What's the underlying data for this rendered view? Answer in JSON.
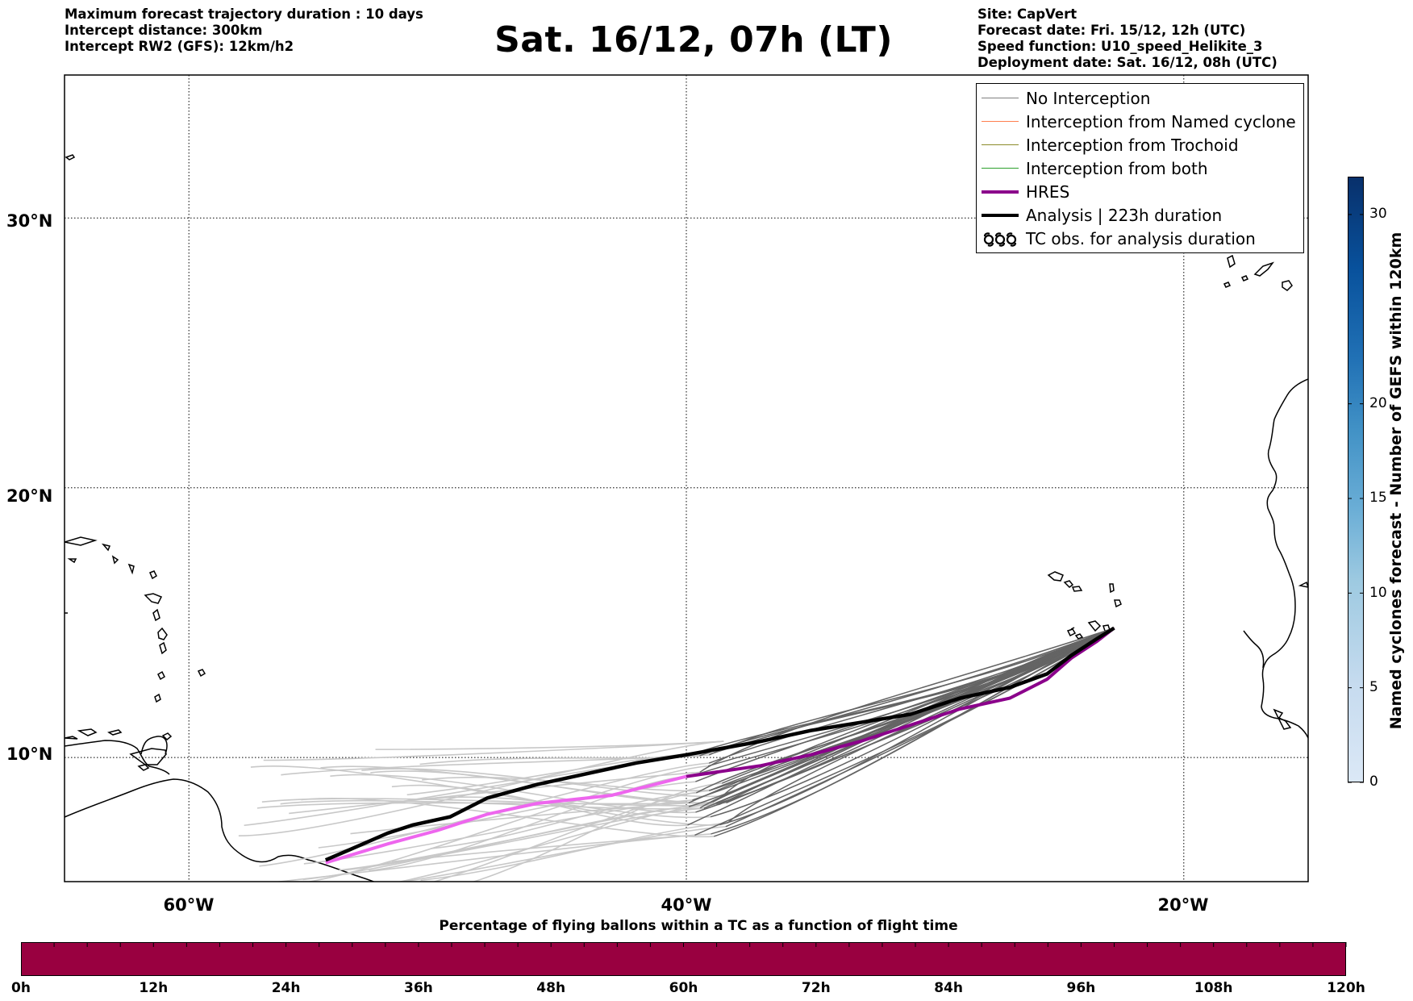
{
  "header": {
    "title": "Sat. 16/12, 07h (LT)",
    "left_lines": [
      "Maximum forecast trajectory duration : 10 days",
      "Intercept distance: 300km",
      "Intercept RW2 (GFS):  12km/h2"
    ],
    "right_lines": [
      "Site: CapVert",
      "Forecast date: Fri. 15/12, 12h (UTC)",
      "Speed function: U10_speed_Helikite_3",
      "Deployment date: Sat. 16/12, 08h (UTC)"
    ]
  },
  "map": {
    "lat_labels": [
      "30°N",
      "20°N",
      "10°N"
    ],
    "lon_labels": [
      "60°W",
      "40°W",
      "20°W"
    ],
    "lat_ticks": [
      30,
      20,
      10
    ],
    "lon_ticks": [
      -60,
      -40,
      -20
    ],
    "extent": {
      "lon_min": -65,
      "lon_max": -15,
      "lat_min": 5.4,
      "lat_max": 35.3
    },
    "grid": true,
    "site": "CapVert"
  },
  "legend": {
    "items": [
      {
        "label": "No Interception",
        "color": "#808080",
        "kind": "line-thin"
      },
      {
        "label": "Interception from Named cyclone",
        "color": "#ff7f50",
        "kind": "line-thin"
      },
      {
        "label": "Interception from Trochoid",
        "color": "#8b8b2a",
        "kind": "line-thin"
      },
      {
        "label": "Interception from both",
        "color": "#2ca02c",
        "kind": "line-thin"
      },
      {
        "label": "HRES",
        "color": "#8b008b",
        "kind": "line-thick"
      },
      {
        "label": "Analysis | 223h duration",
        "color": "#000000",
        "kind": "line-thick"
      },
      {
        "label": "TC obs. for analysis duration",
        "color": "#000000",
        "kind": "tc-symbol"
      }
    ]
  },
  "colorbar_vertical": {
    "label": "Named cyclones forecast - Number of GEFS within 120km",
    "ticks": [
      "0",
      "5",
      "10",
      "15",
      "20",
      "30"
    ],
    "tick_values": [
      0,
      5,
      10,
      15,
      20,
      30
    ],
    "max": 32
  },
  "colorbar_horizontal": {
    "title": "Percentage of flying ballons within a TC as a function of flight time",
    "color": "#990040",
    "ticks": [
      "0h",
      "12h",
      "24h",
      "36h",
      "48h",
      "60h",
      "72h",
      "84h",
      "96h",
      "108h",
      "120h"
    ]
  },
  "tracks": {
    "hres": [
      [
        -22.8,
        14.8
      ],
      [
        -23.5,
        14.3
      ],
      [
        -24.5,
        13.7
      ],
      [
        -25.5,
        12.9
      ],
      [
        -27,
        12.2
      ],
      [
        -29,
        11.8
      ],
      [
        -31,
        11.2
      ],
      [
        -33,
        10.6
      ],
      [
        -35,
        10.1
      ],
      [
        -37,
        9.7
      ],
      [
        -40,
        9.3
      ],
      [
        -43,
        8.6
      ],
      [
        -46,
        8.3
      ],
      [
        -48,
        7.9
      ],
      [
        -50,
        7.3
      ],
      [
        -52,
        6.8
      ],
      [
        -54.5,
        6.1
      ]
    ],
    "analysis": [
      [
        -22.8,
        14.8
      ],
      [
        -23.5,
        14.4
      ],
      [
        -24.5,
        13.8
      ],
      [
        -25.5,
        13.1
      ],
      [
        -27,
        12.6
      ],
      [
        -29,
        12.2
      ],
      [
        -31,
        11.6
      ],
      [
        -33,
        11.3
      ],
      [
        -35,
        11.0
      ],
      [
        -37,
        10.6
      ],
      [
        -40,
        10.1
      ],
      [
        -42,
        9.8
      ],
      [
        -44,
        9.4
      ],
      [
        -46,
        9.0
      ],
      [
        -48,
        8.5
      ],
      [
        -49.5,
        7.8
      ],
      [
        -51,
        7.5
      ],
      [
        -52,
        7.2
      ],
      [
        -53.5,
        6.6
      ],
      [
        -54.5,
        6.2
      ]
    ]
  }
}
